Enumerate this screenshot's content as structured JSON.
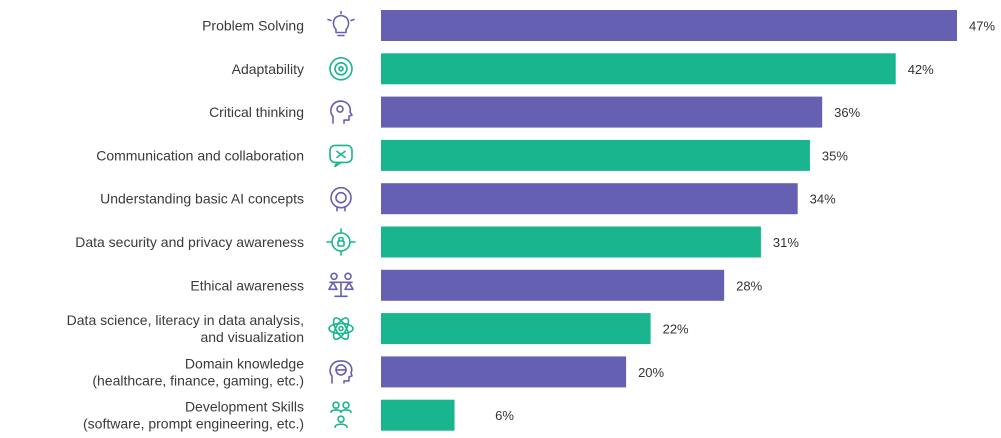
{
  "chart_data": {
    "type": "bar",
    "orientation": "horizontal",
    "title": "",
    "xlabel": "",
    "ylabel": "",
    "xlim": [
      0,
      47
    ],
    "grid": false,
    "legend": "none",
    "value_format": "percent",
    "categories": [
      [
        "Problem Solving"
      ],
      [
        "Adaptability"
      ],
      [
        "Critical thinking"
      ],
      [
        "Communication and collaboration"
      ],
      [
        "Understanding basic AI concepts"
      ],
      [
        "Data security and privacy awareness"
      ],
      [
        "Ethical awareness"
      ],
      [
        "Data science, literacy in data analysis,",
        "and visualization"
      ],
      [
        "Domain knowledge",
        "(healthcare, finance, gaming, etc.)"
      ],
      [
        "Development Skills",
        "(software, prompt engineering, etc.)"
      ]
    ],
    "values": [
      47,
      42,
      36,
      35,
      34,
      31,
      28,
      22,
      20,
      6
    ],
    "value_labels": [
      "47%",
      "42%",
      "36%",
      "35%",
      "34%",
      "31%",
      "28%",
      "22%",
      "20%",
      "6%"
    ],
    "icons": [
      "lightbulb-icon",
      "gear-cycle-icon",
      "head-brain-icon",
      "chat-bubbles-icon",
      "ai-chip-head-icon",
      "security-shield-icon",
      "balance-scale-icon",
      "atom-icon",
      "globe-head-icon",
      "code-people-icon"
    ],
    "colors": [
      "#6560b2",
      "#19b58e",
      "#6560b2",
      "#19b58e",
      "#6560b2",
      "#19b58e",
      "#6560b2",
      "#19b58e",
      "#6560b2",
      "#19b58e"
    ]
  }
}
